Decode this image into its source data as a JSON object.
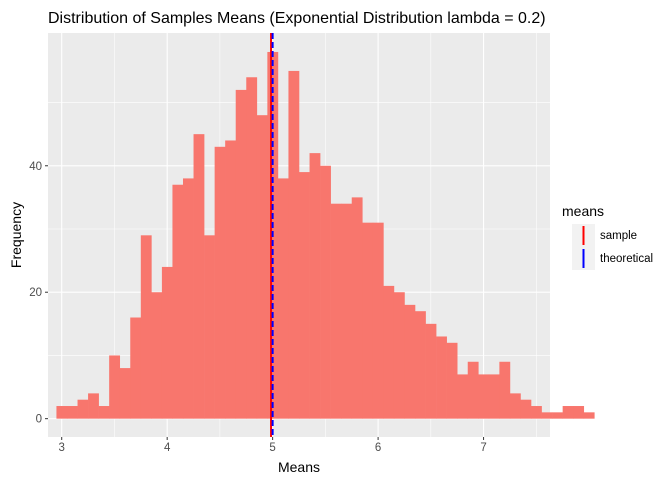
{
  "chart_data": {
    "type": "bar",
    "subtype": "histogram",
    "title": "Distribution of Samples Means (Exponential Distribution lambda = 0.2)",
    "xlabel": "Means",
    "ylabel": "Frequency",
    "xlim": [
      2.87,
      7.63
    ],
    "ylim": [
      -2.9,
      61
    ],
    "x_ticks": [
      3,
      4,
      5,
      6,
      7
    ],
    "x_tick_labels": [
      "3",
      "4",
      "5",
      "6",
      "7"
    ],
    "y_ticks": [
      0,
      20,
      40
    ],
    "y_tick_labels": [
      "0",
      "20",
      "40"
    ],
    "grid": true,
    "bin_start": 2.95,
    "bin_width": 0.1,
    "values": [
      2,
      2,
      3,
      4,
      2,
      10,
      8,
      16,
      29,
      20,
      24,
      37,
      38,
      45,
      29,
      43,
      44,
      52,
      54,
      48,
      58,
      38,
      55,
      39,
      42,
      40,
      34,
      34,
      35,
      31,
      31,
      21,
      20,
      18,
      17,
      15,
      13,
      12,
      7,
      9,
      7,
      7,
      9,
      4,
      3,
      2,
      1,
      1,
      2,
      2,
      1
    ],
    "bar_color": "#f8766d",
    "reference_lines": [
      {
        "name": "sample",
        "x": 4.985,
        "color": "#ff0000",
        "style": "solid"
      },
      {
        "name": "theoretical",
        "x": 5.0,
        "color": "#0000ff",
        "style": "dashed"
      }
    ],
    "legend": {
      "title": "means",
      "position": "right",
      "items": [
        {
          "label": "sample",
          "color": "#ff0000"
        },
        {
          "label": "theoretical",
          "color": "#0000ff"
        }
      ]
    }
  }
}
